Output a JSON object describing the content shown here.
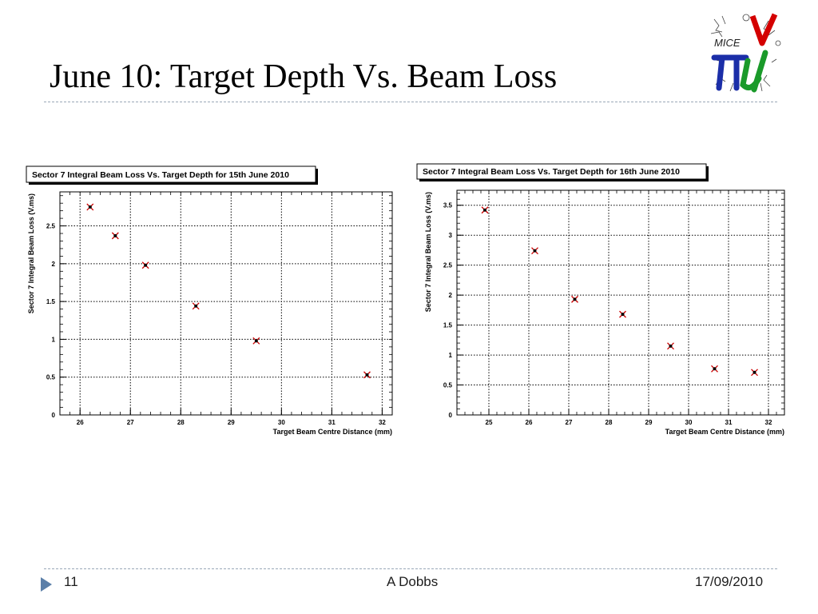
{
  "slide": {
    "title": "June 10: Target Depth Vs. Beam Loss",
    "footer_page": "11",
    "footer_author": "A Dobbs",
    "footer_date": "17/09/2010",
    "logo_text": "MICE"
  },
  "colors": {
    "marker": "#cc0000",
    "accent": "#5b7fa8",
    "grid": "#000000"
  },
  "chart_data": [
    {
      "type": "scatter",
      "title": "Sector 7 Integral Beam Loss Vs. Target Depth for 15th June 2010",
      "xlabel": "Target Beam Centre Distance (mm)",
      "ylabel": "Sector 7 Integral Beam Loss (V.ms)",
      "xlim": [
        25.6,
        32.2
      ],
      "ylim": [
        0,
        2.95
      ],
      "xticks": [
        26,
        27,
        28,
        29,
        30,
        31,
        32
      ],
      "yticks": [
        0,
        0.5,
        1,
        1.5,
        2,
        2.5
      ],
      "ytick_labels": [
        "0",
        "0.5",
        "1",
        "1.5",
        "2",
        "2.5"
      ],
      "grid": true,
      "series": [
        {
          "x": [
            26.2,
            26.7,
            27.3,
            28.3,
            29.5,
            31.7
          ],
          "y": [
            2.75,
            2.37,
            1.98,
            1.44,
            0.98,
            0.53
          ]
        }
      ]
    },
    {
      "type": "scatter",
      "title": "Sector 7 Integral Beam Loss Vs. Target Depth for 16th June 2010",
      "xlabel": "Target Beam Centre Distance (mm)",
      "ylabel": "Sector 7 Integral Beam Loss (V.ms)",
      "xlim": [
        24.2,
        32.4
      ],
      "ylim": [
        0,
        3.75
      ],
      "xticks": [
        25,
        26,
        27,
        28,
        29,
        30,
        31,
        32
      ],
      "yticks": [
        0,
        0.5,
        1,
        1.5,
        2,
        2.5,
        3,
        3.5
      ],
      "ytick_labels": [
        "0",
        "0.5",
        "1",
        "1.5",
        "2",
        "2.5",
        "3",
        "3.5"
      ],
      "grid": true,
      "series": [
        {
          "x": [
            24.9,
            26.15,
            27.15,
            28.35,
            29.55,
            30.65,
            31.65
          ],
          "y": [
            3.42,
            2.74,
            1.93,
            1.68,
            1.15,
            0.77,
            0.71
          ]
        }
      ]
    }
  ]
}
